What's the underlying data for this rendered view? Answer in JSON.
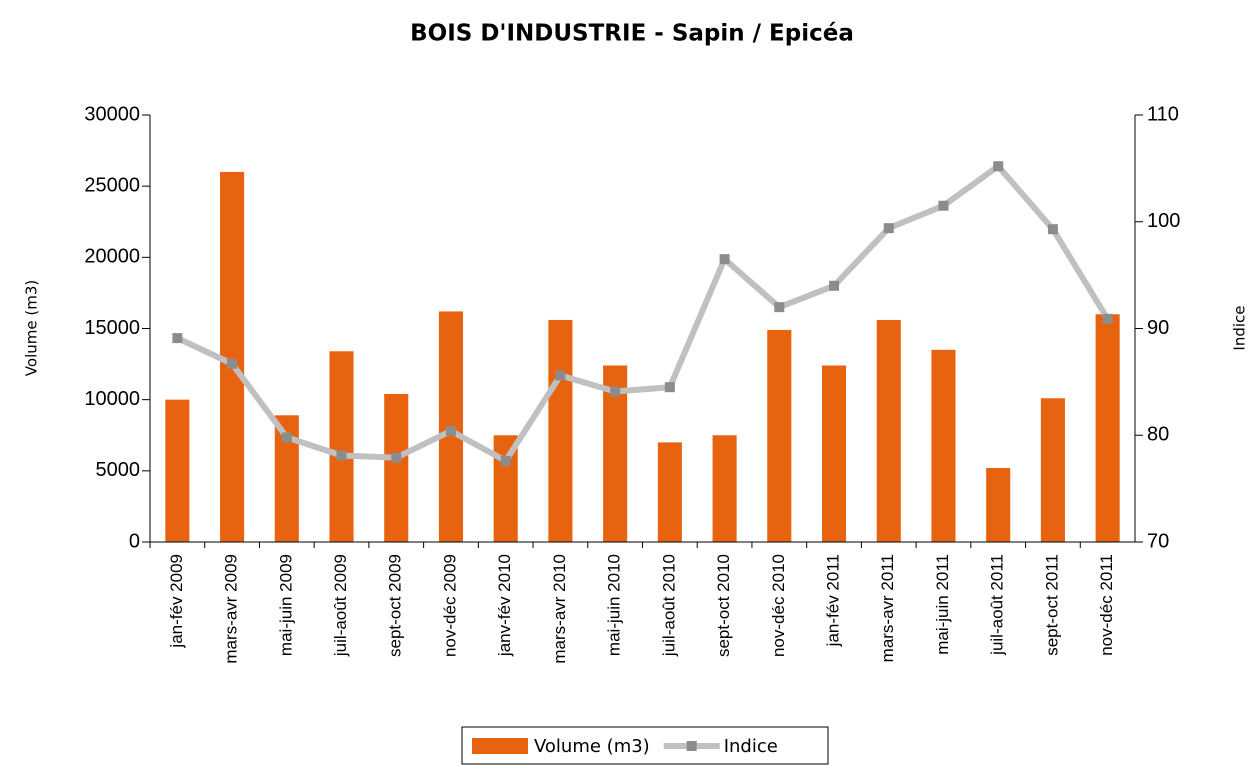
{
  "chart_data": {
    "type": "bar",
    "title": "BOIS D'INDUSTRIE - Sapin / Epicéa",
    "y_label": "Volume (m3)",
    "y2_label": "Indice",
    "categories": [
      "jan-fév 2009",
      "mars-avr 2009",
      "mai-juin 2009",
      "juil-août 2009",
      "sept-oct 2009",
      "nov-déc 2009",
      "janv-fév 2010",
      "mars-avr 2010",
      "mai-juin 2010",
      "juil-août 2010",
      "sept-oct 2010",
      "nov-déc 2010",
      "jan-fév 2011",
      "mars-avr 2011",
      "mai-juin 2011",
      "juil-août 2011",
      "sept-oct 2011",
      "nov-déc 2011"
    ],
    "series": [
      {
        "name": "Volume (m3)",
        "type": "bar",
        "color": "#e8630f",
        "values": [
          10000,
          26000,
          8900,
          13400,
          10400,
          16200,
          7500,
          15600,
          12400,
          7000,
          7500,
          14900,
          12400,
          15600,
          13500,
          5200,
          10100,
          16000
        ]
      },
      {
        "name": "Indice",
        "type": "line",
        "axis": "y2",
        "color": "#c0c0c0",
        "marker_color": "#8c8c8c",
        "values": [
          89.1,
          86.7,
          79.8,
          78.1,
          77.9,
          80.4,
          77.6,
          85.6,
          84.1,
          84.5,
          96.5,
          92.0,
          94.0,
          99.4,
          101.5,
          105.2,
          99.3,
          90.9
        ]
      }
    ],
    "ylim": [
      0,
      30000
    ],
    "yticks": [
      0,
      5000,
      10000,
      15000,
      20000,
      25000,
      30000
    ],
    "y2lim": [
      70,
      110
    ],
    "y2ticks": [
      70,
      80,
      90,
      100,
      110
    ],
    "grid": false,
    "legend": "bottom"
  }
}
